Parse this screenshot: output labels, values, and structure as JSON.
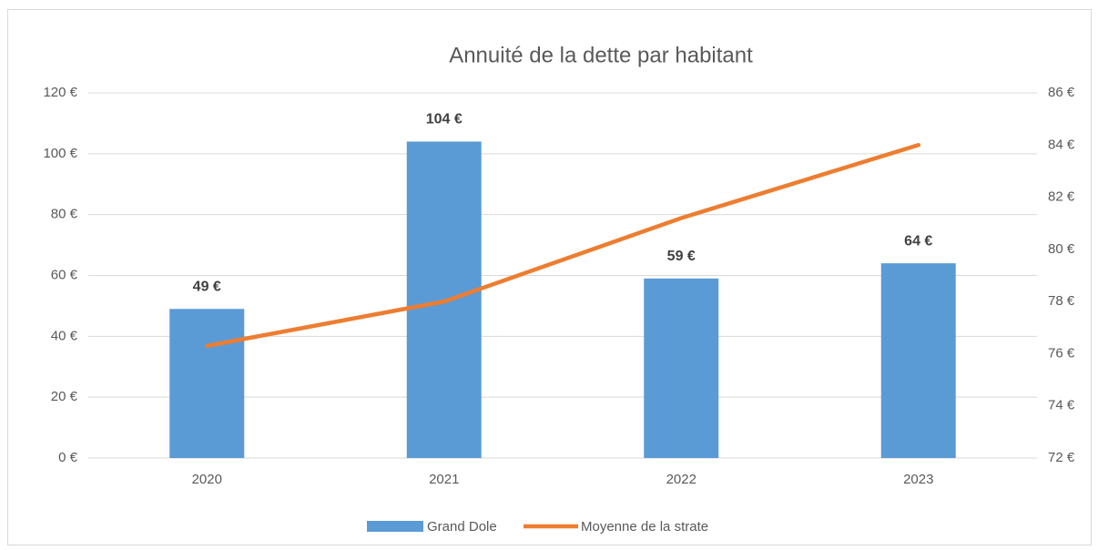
{
  "chart_data": {
    "type": "bar",
    "title": "Annuité de la dette par habitant",
    "categories": [
      "2020",
      "2021",
      "2022",
      "2023"
    ],
    "series": [
      {
        "name": "Grand Dole",
        "type": "bar",
        "color": "#5b9bd5",
        "values": [
          49,
          104,
          59,
          64
        ],
        "value_labels": [
          "49 €",
          "104 €",
          "59 €",
          "64 €"
        ]
      },
      {
        "name": "Moyenne de la strate",
        "type": "line",
        "axis": "y2",
        "color": "#ed7d31",
        "values": [
          76.3,
          78,
          81.2,
          84
        ]
      }
    ],
    "ylim": [
      0,
      120
    ],
    "yticks": [
      {
        "value": 0,
        "label": "0 €"
      },
      {
        "value": 20,
        "label": "20 €"
      },
      {
        "value": 40,
        "label": "40 €"
      },
      {
        "value": 60,
        "label": "60 €"
      },
      {
        "value": 80,
        "label": "80 €"
      },
      {
        "value": 100,
        "label": "100 €"
      },
      {
        "value": 120,
        "label": "120 €"
      }
    ],
    "y2lim": [
      72,
      86
    ],
    "y2ticks": [
      {
        "value": 72,
        "label": "72 €"
      },
      {
        "value": 74,
        "label": "74 €"
      },
      {
        "value": 76,
        "label": "76 €"
      },
      {
        "value": 78,
        "label": "78 €"
      },
      {
        "value": 80,
        "label": "80 €"
      },
      {
        "value": 82,
        "label": "82 €"
      },
      {
        "value": 84,
        "label": "84 €"
      },
      {
        "value": 86,
        "label": "86 €"
      }
    ],
    "grid": true,
    "legend": "bottom"
  }
}
